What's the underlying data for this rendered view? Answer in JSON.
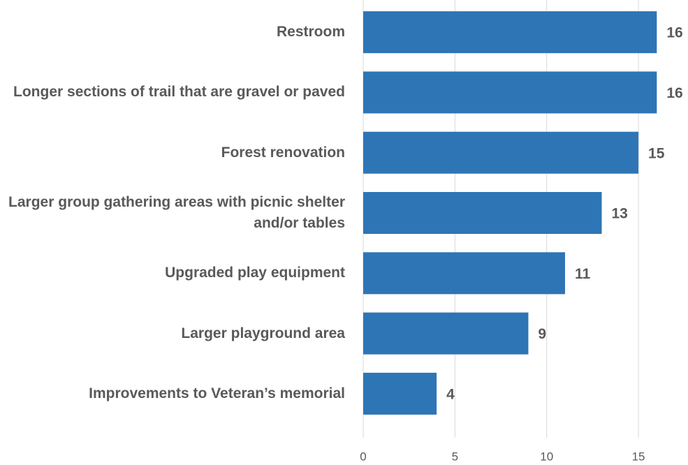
{
  "chart_data": {
    "type": "barh",
    "categories": [
      "Restroom",
      "Longer sections of trail that are gravel or paved",
      "Forest renovation",
      "Larger group gathering areas with picnic shelter and/or tables",
      "Upgraded play equipment",
      "Larger playground area",
      "Improvements to Veteran’s memorial"
    ],
    "values": [
      16,
      16,
      15,
      13,
      11,
      9,
      4
    ],
    "color": "#2e75b6",
    "xlim": [
      0,
      17.5
    ],
    "xticks": [
      0,
      5,
      10,
      15
    ],
    "grid": true
  }
}
